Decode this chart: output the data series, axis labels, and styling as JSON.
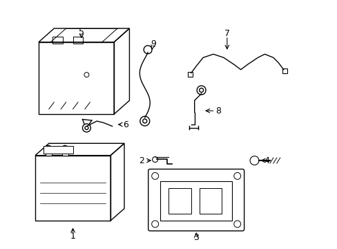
{
  "background_color": "#ffffff",
  "line_color": "#000000"
}
